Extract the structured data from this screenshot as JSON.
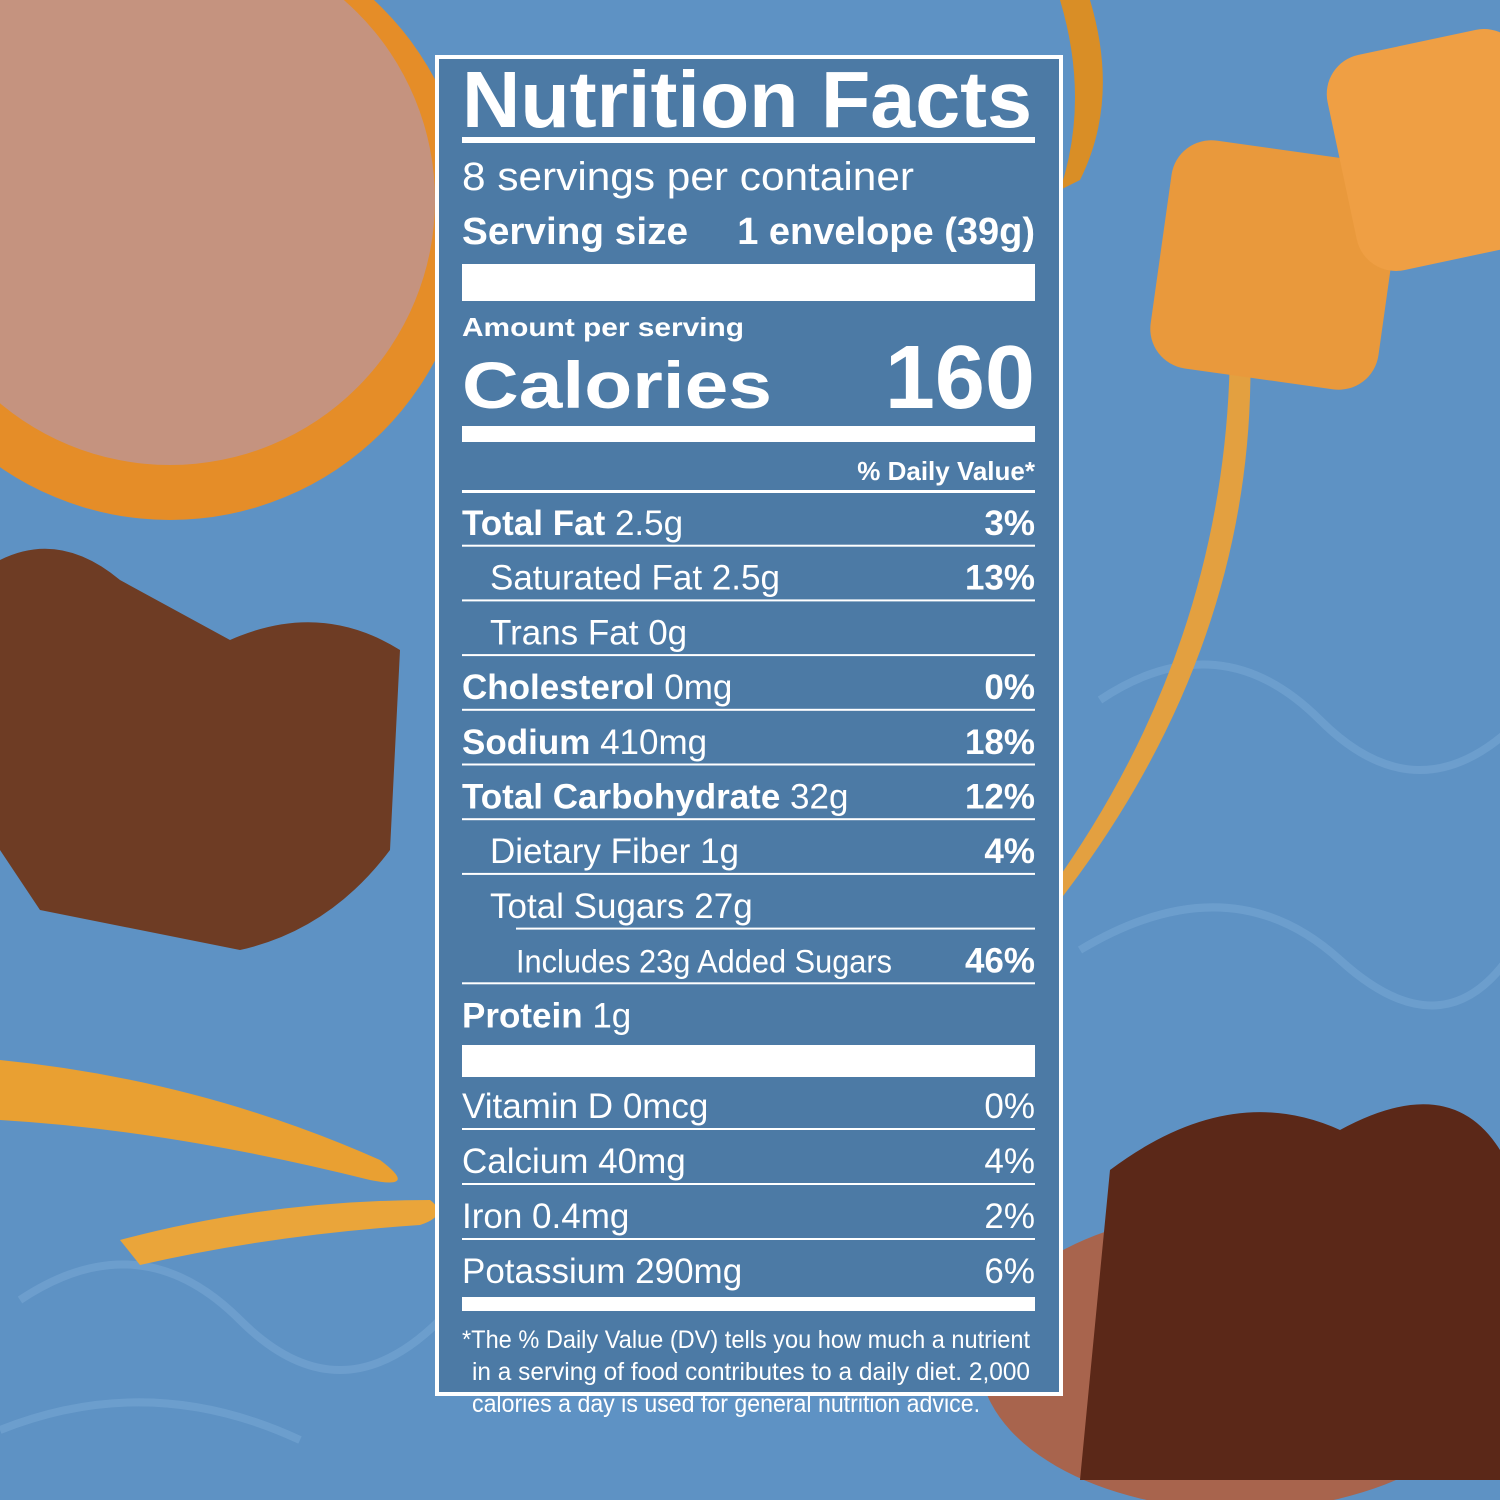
{
  "header": {
    "title": "Nutrition Facts",
    "servings": "8 servings per container",
    "serving_size_label": "Serving size",
    "serving_size_value": "1 envelope (39g)"
  },
  "calories": {
    "amount_label": "Amount per serving",
    "label": "Calories",
    "value": 160
  },
  "dv_header": "% Daily Value*",
  "nutrients": [
    {
      "name": "Total Fat",
      "amount": "2.5g",
      "dv": "3%"
    },
    {
      "name": "Saturated Fat",
      "amount": "2.5g",
      "dv": "13%"
    },
    {
      "name": "Trans Fat",
      "amount": "0g"
    },
    {
      "name": "Cholesterol",
      "amount": "0mg",
      "dv": "0%"
    },
    {
      "name": "Sodium",
      "amount": "410mg",
      "dv": "18%"
    },
    {
      "name": "Total Carbohydrate",
      "amount": "32g",
      "dv": "12%"
    },
    {
      "name": "Dietary Fiber",
      "amount": "1g",
      "dv": "4%"
    },
    {
      "name": "Total Sugars",
      "amount": "27g"
    },
    {
      "name": "Includes 23g Added Sugars",
      "dv": "46%"
    },
    {
      "name": "Protein",
      "amount": "1g"
    }
  ],
  "vitamins": [
    {
      "name": "Vitamin D",
      "amount": "0mcg",
      "dv": "0%"
    },
    {
      "name": "Calcium",
      "amount": "40mg",
      "dv": "4%"
    },
    {
      "name": "Iron",
      "amount": "0.4mg",
      "dv": "2%"
    },
    {
      "name": "Potassium",
      "amount": "290mg",
      "dv": "6%"
    }
  ],
  "footnote": [
    "*The % Daily Value (DV) tells you how much a nutrient",
    "in a serving of food contributes to a daily diet. 2,000",
    "calories a day is used for general nutrition advice."
  ]
}
